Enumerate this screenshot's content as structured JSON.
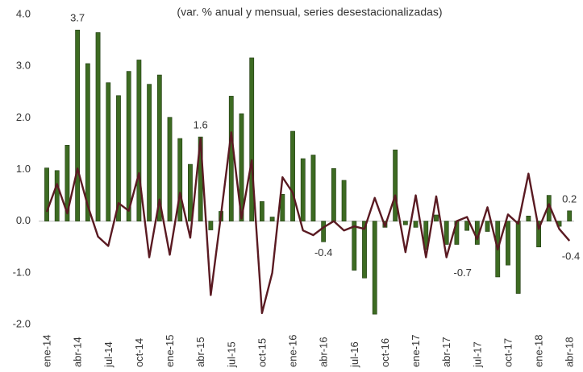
{
  "chart_data": {
    "type": "bar_line",
    "subtitle": "(var. % anual y mensual, series desestacionalizadas)",
    "categories": [
      "ene-14",
      null,
      null,
      "abr-14",
      null,
      null,
      "jul-14",
      null,
      null,
      "oct-14",
      null,
      null,
      "ene-15",
      null,
      null,
      "abr-15",
      null,
      null,
      "jul-15",
      null,
      null,
      "oct-15",
      null,
      null,
      "ene-16",
      null,
      null,
      "abr-16",
      null,
      null,
      "jul-16",
      null,
      null,
      "oct-16",
      null,
      null,
      "ene-17",
      null,
      null,
      "abr-17",
      null,
      null,
      "jul-17",
      null,
      null,
      "oct-17",
      null,
      null,
      "ene-18",
      null,
      null,
      "abr-18"
    ],
    "ylim": [
      -2,
      4
    ],
    "yticks": [
      {
        "value": -2,
        "label": "-2.0"
      },
      {
        "value": -1,
        "label": "-1.0"
      },
      {
        "value": 0,
        "label": "0.0"
      },
      {
        "value": 1,
        "label": "1.0"
      },
      {
        "value": 2,
        "label": "2.0"
      },
      {
        "value": 3,
        "label": "3.0"
      },
      {
        "value": 4,
        "label": "4.0"
      }
    ],
    "series": [
      {
        "type": "bar",
        "color": "#3d6b22",
        "values": [
          1.03,
          0.98,
          1.47,
          3.7,
          3.05,
          3.65,
          2.68,
          2.43,
          2.9,
          3.12,
          2.65,
          2.83,
          2.01,
          1.6,
          1.1,
          1.63,
          -0.17,
          0.19,
          2.42,
          2.08,
          3.16,
          0.38,
          0.08,
          0.52,
          1.74,
          1.21,
          1.28,
          -0.4,
          1.02,
          0.79,
          -0.95,
          -1.1,
          -1.8,
          -0.12,
          1.38,
          -0.07,
          -0.12,
          -0.55,
          0.12,
          -0.45,
          -0.45,
          -0.18,
          -0.45,
          -0.2,
          -1.08,
          -0.85,
          -1.4,
          0.1,
          -0.5,
          0.5,
          -0.1,
          0.2
        ],
        "value_labels": [
          null,
          null,
          null,
          "3.7",
          null,
          null,
          null,
          null,
          null,
          null,
          null,
          null,
          null,
          null,
          null,
          "1.6",
          null,
          null,
          null,
          null,
          null,
          null,
          null,
          null,
          null,
          null,
          null,
          "-0.4",
          null,
          null,
          null,
          null,
          null,
          null,
          null,
          null,
          null,
          null,
          null,
          null,
          null,
          null,
          null,
          null,
          null,
          null,
          null,
          null,
          null,
          null,
          null,
          "0.2"
        ]
      },
      {
        "type": "line",
        "color": "#5a1a22",
        "values": [
          0.18,
          0.72,
          0.15,
          1.02,
          0.3,
          -0.3,
          -0.48,
          0.35,
          0.2,
          0.93,
          -0.7,
          0.42,
          -0.65,
          0.55,
          -0.32,
          1.6,
          -1.43,
          0.12,
          1.72,
          0.05,
          1.18,
          -1.78,
          -1.0,
          0.85,
          0.55,
          -0.18,
          -0.27,
          -0.12,
          0.0,
          -0.18,
          -0.1,
          -0.15,
          0.45,
          -0.1,
          0.5,
          -0.6,
          0.5,
          -0.7,
          0.48,
          -0.7,
          0.0,
          0.08,
          -0.35,
          0.27,
          -0.55,
          0.13,
          -0.05,
          0.92,
          -0.15,
          0.33,
          -0.15,
          -0.38
        ],
        "value_labels": [
          null,
          null,
          null,
          null,
          null,
          null,
          null,
          null,
          null,
          null,
          null,
          null,
          null,
          null,
          null,
          null,
          null,
          null,
          null,
          null,
          null,
          null,
          null,
          null,
          null,
          null,
          null,
          null,
          null,
          null,
          null,
          null,
          null,
          null,
          null,
          null,
          null,
          null,
          null,
          "-0.7",
          null,
          null,
          null,
          null,
          null,
          null,
          null,
          null,
          null,
          null,
          null,
          "-0.4"
        ]
      }
    ]
  }
}
